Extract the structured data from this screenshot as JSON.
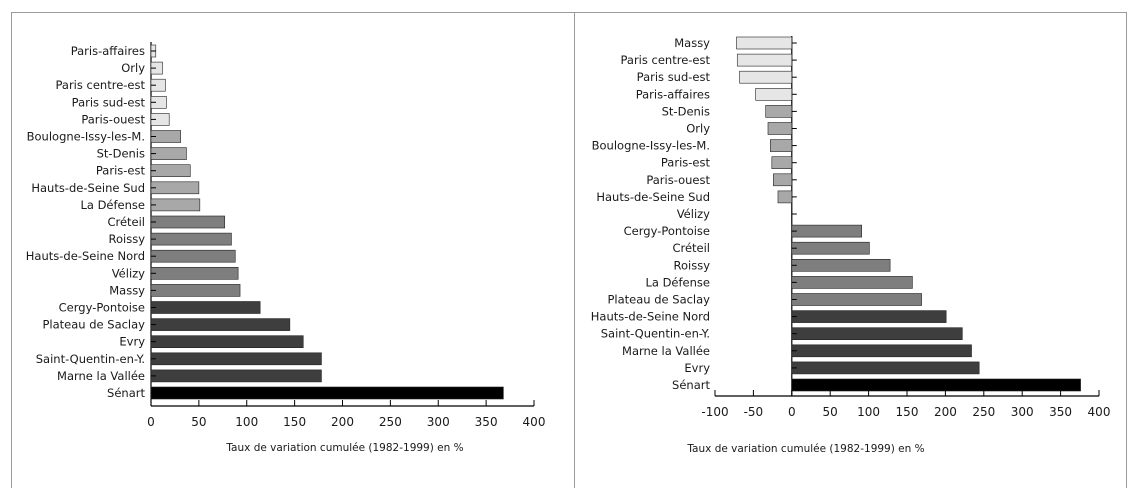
{
  "chart_data": [
    {
      "type": "bar",
      "orientation": "horizontal",
      "categories": [
        "Paris-affaires",
        "Orly",
        "Paris centre-est",
        "Paris sud-est",
        "Paris-ouest",
        "Boulogne-Issy-les-M.",
        "St-Denis",
        "Paris-est",
        "Hauts-de-Seine Sud",
        "La Défense",
        "Créteil",
        "Roissy",
        "Hauts-de-Seine Nord",
        "Vélizy",
        "Massy",
        "Cergy-Pontoise",
        "Plateau de Saclay",
        "Evry",
        "Saint-Quentin-en-Y.",
        "Marne la Vallée",
        "Sénart"
      ],
      "values": [
        5,
        12,
        15,
        16,
        19,
        31,
        37,
        41,
        50,
        51,
        77,
        84,
        88,
        91,
        93,
        114,
        145,
        159,
        178,
        178,
        368
      ],
      "bar_colors": [
        "#e6e6e6",
        "#e6e6e6",
        "#e6e6e6",
        "#e6e6e6",
        "#e6e6e6",
        "#a8a8a8",
        "#a8a8a8",
        "#a8a8a8",
        "#a8a8a8",
        "#a8a8a8",
        "#7e7e7e",
        "#7e7e7e",
        "#7e7e7e",
        "#7e7e7e",
        "#7e7e7e",
        "#3e3e3e",
        "#3e3e3e",
        "#3e3e3e",
        "#3e3e3e",
        "#3e3e3e",
        "#000000"
      ],
      "xlim": [
        0,
        400
      ],
      "xticks": [
        "0",
        "50",
        "100",
        "150",
        "200",
        "250",
        "300",
        "350",
        "400"
      ],
      "xlabel": "Taux de variation cumulée (1982-1999) en %",
      "grid": false
    },
    {
      "type": "bar",
      "orientation": "horizontal",
      "categories": [
        "Massy",
        "Paris centre-est",
        "Paris sud-est",
        "Paris-affaires",
        "St-Denis",
        "Orly",
        "Boulogne-Issy-les-M.",
        "Paris-est",
        "Paris-ouest",
        "Hauts-de-Seine Sud",
        "Vélizy",
        "Cergy-Pontoise",
        "Créteil",
        "Roissy",
        "La Défense",
        "Plateau de Saclay",
        "Hauts-de-Seine Nord",
        "Saint-Quentin-en-Y.",
        "Marne la Vallée",
        "Evry",
        "Sénart"
      ],
      "values": [
        -72,
        -71,
        -68,
        -47,
        -34,
        -31,
        -28,
        -26,
        -24,
        -18,
        0,
        91,
        101,
        128,
        157,
        169,
        201,
        222,
        234,
        244,
        376
      ],
      "bar_colors": [
        "#e6e6e6",
        "#e6e6e6",
        "#e6e6e6",
        "#e6e6e6",
        "#a8a8a8",
        "#a8a8a8",
        "#a8a8a8",
        "#a8a8a8",
        "#a8a8a8",
        "#a8a8a8",
        "#a8a8a8",
        "#7e7e7e",
        "#7e7e7e",
        "#7e7e7e",
        "#7e7e7e",
        "#7e7e7e",
        "#3e3e3e",
        "#3e3e3e",
        "#3e3e3e",
        "#3e3e3e",
        "#000000"
      ],
      "xlim": [
        -100,
        400
      ],
      "xticks": [
        "-100",
        "-50",
        "0",
        "50",
        "100",
        "150",
        "200",
        "250",
        "300",
        "350",
        "400"
      ],
      "xlabel": "Taux de variation cumulée (1982-1999) en %",
      "grid": false
    }
  ]
}
